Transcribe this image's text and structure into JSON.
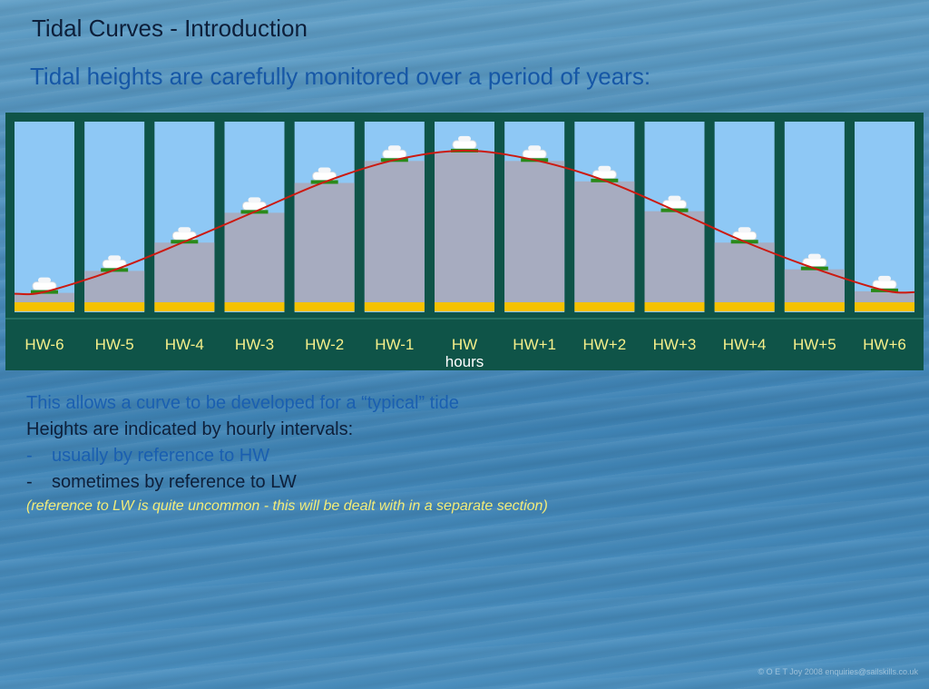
{
  "header": {
    "title": "Tidal Curves - Introduction",
    "subtitle": "Tidal heights are carefully monitored over a period of years:"
  },
  "chart_data": {
    "type": "line",
    "categories": [
      "HW-6",
      "HW-5",
      "HW-4",
      "HW-3",
      "HW-2",
      "HW-1",
      "HW",
      "HW+1",
      "HW+2",
      "HW+3",
      "HW+4",
      "HW+5",
      "HW+6"
    ],
    "values": [
      0.06,
      0.2,
      0.38,
      0.57,
      0.76,
      0.9,
      0.96,
      0.9,
      0.77,
      0.58,
      0.38,
      0.21,
      0.07
    ],
    "xlabel": "hours",
    "ylim": [
      0,
      1
    ],
    "colors": {
      "frame": "#0f5448",
      "sky": "#8ec8f5",
      "water": "#a7acc0",
      "seabed": "#f5c200",
      "curve": "#cc1a10",
      "marker": "#2a8a1a",
      "label": "#f7f08a",
      "xlabel": "#ffffff"
    }
  },
  "body": {
    "line1": "This allows a curve to be developed for a “typical” tide",
    "line2": "Heights are indicated by hourly intervals:",
    "bullet1_dash": "-",
    "bullet1": "usually by reference to HW",
    "bullet2_dash": "-",
    "bullet2": "sometimes by reference to LW",
    "note": "(reference to LW is quite uncommon - this will be dealt with in a separate section)"
  },
  "footer": "© O E T Joy 2008 enquiries@sailskills.co.uk"
}
